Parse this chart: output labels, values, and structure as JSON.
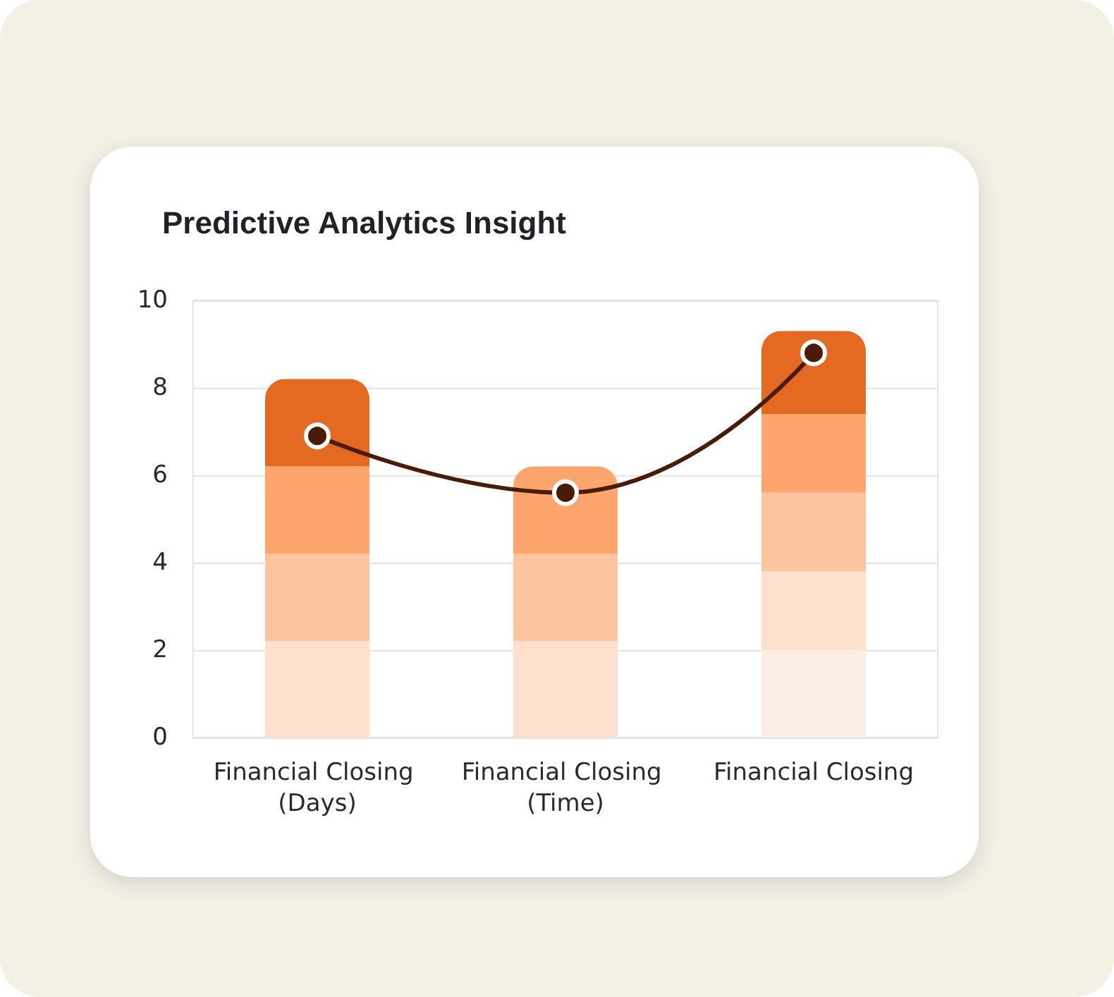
{
  "chart_data": {
    "type": "bar",
    "title": "Predictive Analytics Insight",
    "categories": [
      "Financial Closing (Days)",
      "Financial Closing (Time)",
      "Financial Closing"
    ],
    "stacked": true,
    "series": [
      {
        "values": [
          2.2,
          2.2,
          2.0
        ],
        "colors": [
          "#fde0cd",
          "#fde0cd",
          "#fdeee4"
        ]
      },
      {
        "values": [
          2.0,
          2.0,
          1.8
        ],
        "colors": [
          "#fdc4a0",
          "#fdc4a0",
          "#fde0cd"
        ]
      },
      {
        "values": [
          2.0,
          2.0,
          1.8
        ],
        "colors": [
          "#fda56c",
          "#fda56c",
          "#fdc4a0"
        ]
      },
      {
        "values": [
          2.0,
          null,
          1.8
        ],
        "colors": [
          "#e36a20",
          null,
          "#fda56c"
        ]
      },
      {
        "values": [
          null,
          null,
          1.9
        ],
        "colors": [
          null,
          null,
          "#e36a20"
        ]
      },
      {
        "type": "line",
        "values": [
          6.9,
          5.6,
          8.8
        ],
        "color": "#4a1b06"
      }
    ],
    "ylim": [
      0,
      10
    ],
    "yticks": [
      0,
      2,
      4,
      6,
      8,
      10
    ],
    "grid": "y",
    "marker": "circle",
    "line_style": "solid"
  }
}
